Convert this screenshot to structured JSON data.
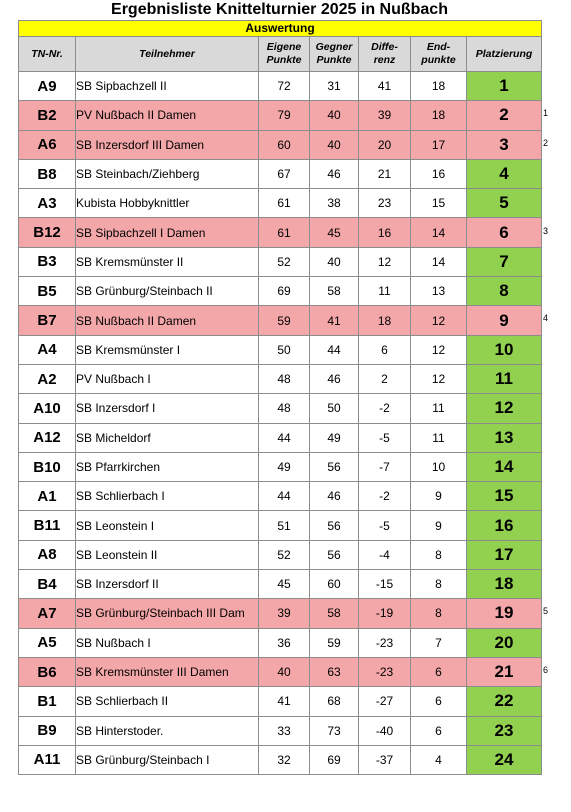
{
  "title": "Ergebnisliste Knittelturnier 2025 in Nußbach",
  "subheader": "Auswertung",
  "columns": {
    "tn": "TN-Nr.",
    "teilnehmer": "Teilnehmer",
    "eigene_1": "Eigene",
    "eigene_2": "Punkte",
    "gegner_1": "Gegner",
    "gegner_2": "Punkte",
    "diff_1": "Diffe-",
    "diff_2": "renz",
    "end_1": "End-",
    "end_2": "punkte",
    "platz": "Platzierung"
  },
  "colors": {
    "yellow": "#ffff00",
    "green": "#92d050",
    "pink": "#f4a7a9",
    "header_grey": "#d9d9d9"
  },
  "rows": [
    {
      "tn": "A9",
      "name": "SB Sipbachzell II",
      "eigene": "72",
      "gegner": "31",
      "diff": "41",
      "end": "18",
      "platz": "1",
      "damen": false,
      "note": ""
    },
    {
      "tn": "B2",
      "name": "PV Nußbach II Damen",
      "eigene": "79",
      "gegner": "40",
      "diff": "39",
      "end": "18",
      "platz": "2",
      "damen": true,
      "note": "1"
    },
    {
      "tn": "A6",
      "name": "SB Inzersdorf III Damen",
      "eigene": "60",
      "gegner": "40",
      "diff": "20",
      "end": "17",
      "platz": "3",
      "damen": true,
      "note": "2"
    },
    {
      "tn": "B8",
      "name": "SB Steinbach/Ziehberg",
      "eigene": "67",
      "gegner": "46",
      "diff": "21",
      "end": "16",
      "platz": "4",
      "damen": false,
      "note": ""
    },
    {
      "tn": "A3",
      "name": "Kubista Hobbyknittler",
      "eigene": "61",
      "gegner": "38",
      "diff": "23",
      "end": "15",
      "platz": "5",
      "damen": false,
      "note": ""
    },
    {
      "tn": "B12",
      "name": "SB Sipbachzell I Damen",
      "eigene": "61",
      "gegner": "45",
      "diff": "16",
      "end": "14",
      "platz": "6",
      "damen": true,
      "note": "3"
    },
    {
      "tn": "B3",
      "name": "SB Kremsmünster II",
      "eigene": "52",
      "gegner": "40",
      "diff": "12",
      "end": "14",
      "platz": "7",
      "damen": false,
      "note": ""
    },
    {
      "tn": "B5",
      "name": "SB Grünburg/Steinbach II",
      "eigene": "69",
      "gegner": "58",
      "diff": "11",
      "end": "13",
      "platz": "8",
      "damen": false,
      "note": ""
    },
    {
      "tn": "B7",
      "name": "SB Nußbach II Damen",
      "eigene": "59",
      "gegner": "41",
      "diff": "18",
      "end": "12",
      "platz": "9",
      "damen": true,
      "note": "4"
    },
    {
      "tn": "A4",
      "name": "SB Kremsmünster I",
      "eigene": "50",
      "gegner": "44",
      "diff": "6",
      "end": "12",
      "platz": "10",
      "damen": false,
      "note": ""
    },
    {
      "tn": "A2",
      "name": "PV Nußbach I",
      "eigene": "48",
      "gegner": "46",
      "diff": "2",
      "end": "12",
      "platz": "11",
      "damen": false,
      "note": ""
    },
    {
      "tn": "A10",
      "name": "SB Inzersdorf I",
      "eigene": "48",
      "gegner": "50",
      "diff": "-2",
      "end": "11",
      "platz": "12",
      "damen": false,
      "note": ""
    },
    {
      "tn": "A12",
      "name": "SB Micheldorf",
      "eigene": "44",
      "gegner": "49",
      "diff": "-5",
      "end": "11",
      "platz": "13",
      "damen": false,
      "note": ""
    },
    {
      "tn": "B10",
      "name": "SB Pfarrkirchen",
      "eigene": "49",
      "gegner": "56",
      "diff": "-7",
      "end": "10",
      "platz": "14",
      "damen": false,
      "note": ""
    },
    {
      "tn": "A1",
      "name": "SB Schlierbach I",
      "eigene": "44",
      "gegner": "46",
      "diff": "-2",
      "end": "9",
      "platz": "15",
      "damen": false,
      "note": ""
    },
    {
      "tn": "B11",
      "name": "SB Leonstein I",
      "eigene": "51",
      "gegner": "56",
      "diff": "-5",
      "end": "9",
      "platz": "16",
      "damen": false,
      "note": ""
    },
    {
      "tn": "A8",
      "name": "SB Leonstein II",
      "eigene": "52",
      "gegner": "56",
      "diff": "-4",
      "end": "8",
      "platz": "17",
      "damen": false,
      "note": ""
    },
    {
      "tn": "B4",
      "name": "SB Inzersdorf II",
      "eigene": "45",
      "gegner": "60",
      "diff": "-15",
      "end": "8",
      "platz": "18",
      "damen": false,
      "note": ""
    },
    {
      "tn": "A7",
      "name": "SB Grünburg/Steinbach III Dam",
      "eigene": "39",
      "gegner": "58",
      "diff": "-19",
      "end": "8",
      "platz": "19",
      "damen": true,
      "note": "5"
    },
    {
      "tn": "A5",
      "name": "SB Nußbach I",
      "eigene": "36",
      "gegner": "59",
      "diff": "-23",
      "end": "7",
      "platz": "20",
      "damen": false,
      "note": ""
    },
    {
      "tn": "B6",
      "name": "SB Kremsmünster III Damen",
      "eigene": "40",
      "gegner": "63",
      "diff": "-23",
      "end": "6",
      "platz": "21",
      "damen": true,
      "note": "6"
    },
    {
      "tn": "B1",
      "name": "SB Schlierbach II",
      "eigene": "41",
      "gegner": "68",
      "diff": "-27",
      "end": "6",
      "platz": "22",
      "damen": false,
      "note": ""
    },
    {
      "tn": "B9",
      "name": "SB Hinterstoder.",
      "eigene": "33",
      "gegner": "73",
      "diff": "-40",
      "end": "6",
      "platz": "23",
      "damen": false,
      "note": ""
    },
    {
      "tn": "A11",
      "name": "SB Grünburg/Steinbach I",
      "eigene": "32",
      "gegner": "69",
      "diff": "-37",
      "end": "4",
      "platz": "24",
      "damen": false,
      "note": ""
    }
  ]
}
